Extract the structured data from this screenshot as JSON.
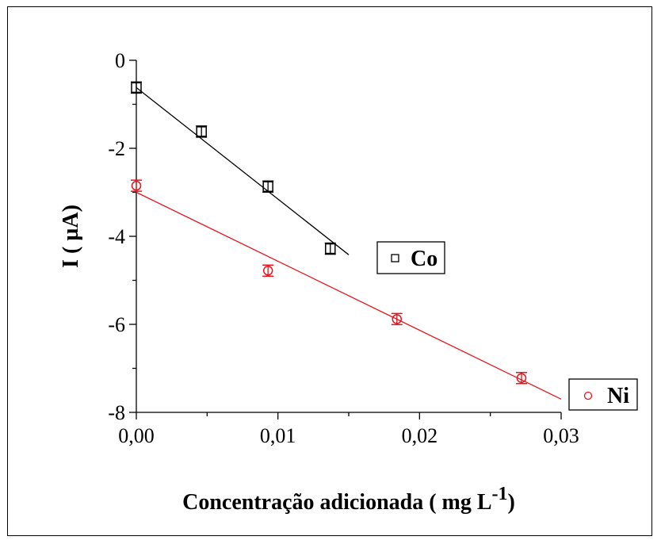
{
  "chart_data": {
    "type": "scatter",
    "xlabel": "Concentração adicionada ( mg L",
    "xlabel_superscript": "-1",
    "xlabel_close": ")",
    "ylabel": "I ( µA)",
    "xlim": [
      0,
      0.03
    ],
    "ylim": [
      -8,
      0
    ],
    "x_ticks": [
      0,
      0.01,
      0.02,
      0.03
    ],
    "x_tick_labels": [
      "0,00",
      "0,01",
      "0,02",
      "0,03"
    ],
    "y_ticks": [
      0,
      -2,
      -4,
      -6,
      -8
    ],
    "y_tick_labels": [
      "0",
      "-2",
      "-4",
      "-6",
      "-8"
    ],
    "series": [
      {
        "name": "Co",
        "color": "#000000",
        "marker": "square",
        "x": [
          0.0,
          0.0046,
          0.0093,
          0.0137
        ],
        "y": [
          -0.62,
          -1.62,
          -2.87,
          -4.28
        ],
        "fit": {
          "x": [
            0.0,
            0.015
          ],
          "y": [
            -0.62,
            -4.42
          ]
        }
      },
      {
        "name": "Ni",
        "color": "#e8141d",
        "marker": "circle",
        "x": [
          0.0,
          0.0093,
          0.0184,
          0.0272
        ],
        "y": [
          -2.85,
          -4.78,
          -5.88,
          -7.22
        ],
        "fit": {
          "x": [
            0.0,
            0.03
          ],
          "y": [
            -3.0,
            -7.7
          ]
        }
      }
    ]
  }
}
